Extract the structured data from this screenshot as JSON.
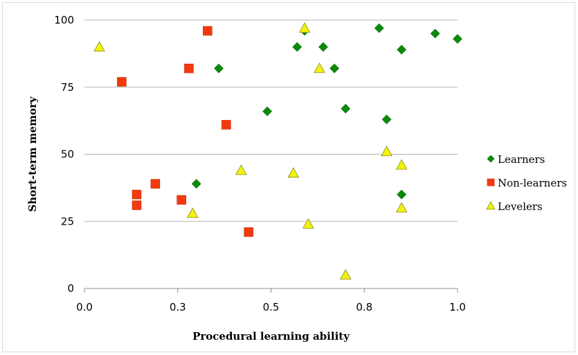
{
  "chart_data": {
    "type": "scatter",
    "title": "",
    "xlabel": "Procedural learning ability",
    "ylabel": "Short-term memory",
    "xlim": [
      0,
      1
    ],
    "ylim": [
      0,
      100
    ],
    "x_ticks": [
      {
        "value": 0,
        "label": "0.0"
      },
      {
        "value": 0.25,
        "label": "0.3"
      },
      {
        "value": 0.5,
        "label": "0.5"
      },
      {
        "value": 0.75,
        "label": "0.8"
      },
      {
        "value": 1,
        "label": "1.0"
      }
    ],
    "y_ticks": [
      {
        "value": 0,
        "label": "0"
      },
      {
        "value": 25,
        "label": "25"
      },
      {
        "value": 50,
        "label": "50"
      },
      {
        "value": 75,
        "label": "75"
      },
      {
        "value": 100,
        "label": "100"
      }
    ],
    "grid": "horizontal",
    "legend_position": "right",
    "series": [
      {
        "name": "Learners",
        "marker": "diamond",
        "color": "#0a8a0a",
        "points": [
          {
            "x": 0.3,
            "y": 39
          },
          {
            "x": 0.36,
            "y": 82
          },
          {
            "x": 0.49,
            "y": 66
          },
          {
            "x": 0.57,
            "y": 90
          },
          {
            "x": 0.59,
            "y": 96
          },
          {
            "x": 0.64,
            "y": 90
          },
          {
            "x": 0.67,
            "y": 82
          },
          {
            "x": 0.7,
            "y": 67
          },
          {
            "x": 0.79,
            "y": 97
          },
          {
            "x": 0.81,
            "y": 63
          },
          {
            "x": 0.85,
            "y": 89
          },
          {
            "x": 0.85,
            "y": 35
          },
          {
            "x": 0.94,
            "y": 95
          },
          {
            "x": 1.0,
            "y": 93
          }
        ]
      },
      {
        "name": "Non-learners",
        "marker": "square",
        "color": "#f23a0e",
        "points": [
          {
            "x": 0.1,
            "y": 77
          },
          {
            "x": 0.14,
            "y": 35
          },
          {
            "x": 0.14,
            "y": 31
          },
          {
            "x": 0.19,
            "y": 39
          },
          {
            "x": 0.26,
            "y": 33
          },
          {
            "x": 0.28,
            "y": 82
          },
          {
            "x": 0.33,
            "y": 96
          },
          {
            "x": 0.38,
            "y": 61
          },
          {
            "x": 0.44,
            "y": 21
          }
        ]
      },
      {
        "name": "Levelers",
        "marker": "triangle",
        "color": "#f2f20a",
        "points": [
          {
            "x": 0.04,
            "y": 90
          },
          {
            "x": 0.29,
            "y": 28
          },
          {
            "x": 0.42,
            "y": 44
          },
          {
            "x": 0.56,
            "y": 43
          },
          {
            "x": 0.59,
            "y": 97
          },
          {
            "x": 0.6,
            "y": 24
          },
          {
            "x": 0.63,
            "y": 82
          },
          {
            "x": 0.7,
            "y": 5
          },
          {
            "x": 0.81,
            "y": 51
          },
          {
            "x": 0.85,
            "y": 46
          },
          {
            "x": 0.85,
            "y": 30
          }
        ]
      }
    ]
  }
}
